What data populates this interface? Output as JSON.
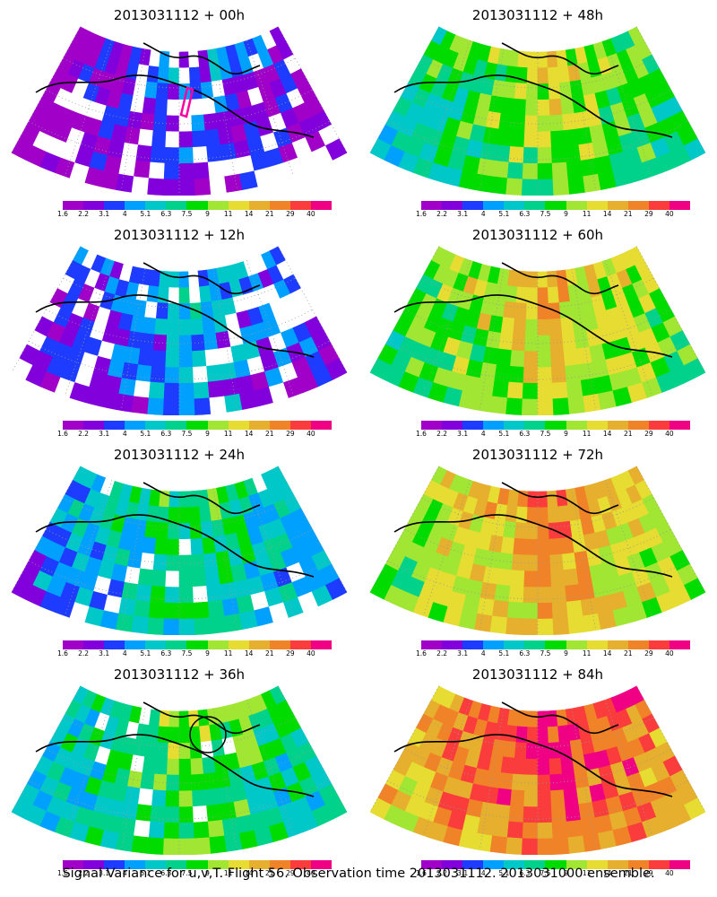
{
  "footer": "Signal Variance for u,v,T. Flight 56. Observation time 2013031112. 2013031000 ensemble.",
  "colorbar": {
    "labels": [
      "1.6",
      "2.2",
      "3.1",
      "4",
      "5.1",
      "6.3",
      "7.5",
      "9",
      "11",
      "14",
      "21",
      "29",
      "40"
    ],
    "colors": [
      "#a000c8",
      "#8200dc",
      "#1e3cff",
      "#00a0ff",
      "#00c8c8",
      "#00d28c",
      "#00dc00",
      "#a0e632",
      "#e6dc32",
      "#e6af2d",
      "#f08228",
      "#fa3c3c",
      "#f00082"
    ]
  },
  "chart_data": [
    {
      "type": "heatmap",
      "title": "2013031112 + 00h",
      "lead_hours": 0,
      "mean_level": 0,
      "annotation": "pink polygon"
    },
    {
      "type": "heatmap",
      "title": "2013031112 + 48h",
      "lead_hours": 48,
      "mean_level": 5
    },
    {
      "type": "heatmap",
      "title": "2013031112 + 12h",
      "lead_hours": 12,
      "mean_level": 1
    },
    {
      "type": "heatmap",
      "title": "2013031112 + 60h",
      "lead_hours": 60,
      "mean_level": 6
    },
    {
      "type": "heatmap",
      "title": "2013031112 + 24h",
      "lead_hours": 24,
      "mean_level": 3
    },
    {
      "type": "heatmap",
      "title": "2013031112 + 72h",
      "lead_hours": 72,
      "mean_level": 7
    },
    {
      "type": "heatmap",
      "title": "2013031112 + 36h",
      "lead_hours": 36,
      "mean_level": 4,
      "annotation": "black circle"
    },
    {
      "type": "heatmap",
      "title": "2013031112 + 84h",
      "lead_hours": 84,
      "mean_level": 9
    }
  ]
}
